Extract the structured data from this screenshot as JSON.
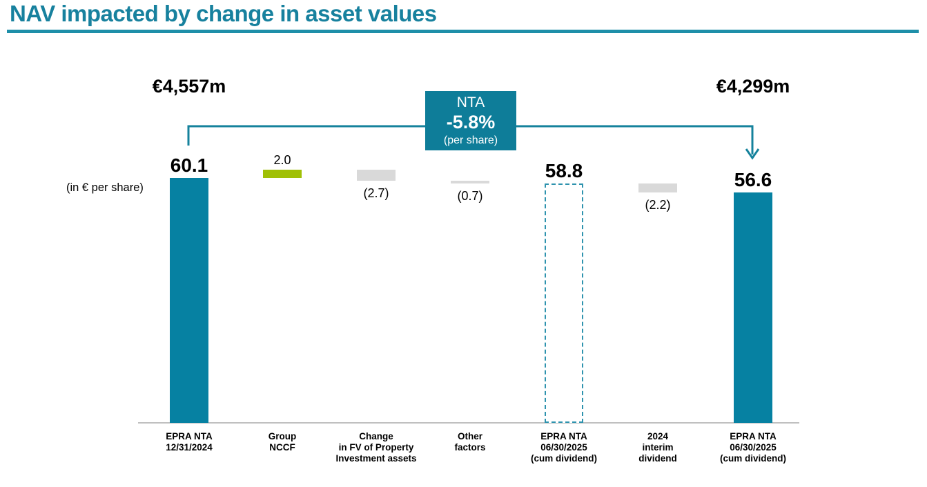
{
  "slide": {
    "title": "NAV impacted by change in asset values",
    "title_color": "#17819E",
    "rule_color": "#1E8FA9"
  },
  "chart_data": {
    "type": "bar",
    "subtype": "waterfall",
    "title": "NAV impacted by change in asset values",
    "unit_note": "(in € per share)",
    "categories": [
      "EPRA NTA\n12/31/2024",
      "Group\nNCCF",
      "Change\nin FV of Property\nInvestment assets",
      "Other\nfactors",
      "EPRA NTA\n06/30/2025\n(cum dividend)",
      "2024\ninterim\ndividend",
      "EPRA NTA\n06/30/2025\n(cum dividend)"
    ],
    "values": [
      60.1,
      2.0,
      -2.7,
      -0.7,
      58.8,
      -2.2,
      56.6
    ],
    "value_labels": [
      "60.1",
      "2.0",
      "(2.7)",
      "(0.7)",
      "58.8",
      "(2.2)",
      "56.6"
    ],
    "bar_kinds": [
      "total",
      "increase",
      "decrease",
      "decrease",
      "subtotal_dashed",
      "decrease",
      "total"
    ],
    "ylim": [
      0,
      62.1
    ],
    "grid": "off",
    "legend": "none",
    "colors": {
      "total": "#0681a2",
      "increase": "#a0c006",
      "decrease": "#d9d9d9",
      "dashed_border": "#2e93ae",
      "axis": "#c0c0c0",
      "arrow": "#15829c",
      "callout_bg": "#0e7d99"
    },
    "annotations": {
      "left_total": "€4,557m",
      "right_total": "€4,299m",
      "axis_note": "(in € per share)",
      "nta_box": {
        "line1": "NTA",
        "line2": "-5.8%",
        "line3": "(per share)"
      }
    }
  }
}
